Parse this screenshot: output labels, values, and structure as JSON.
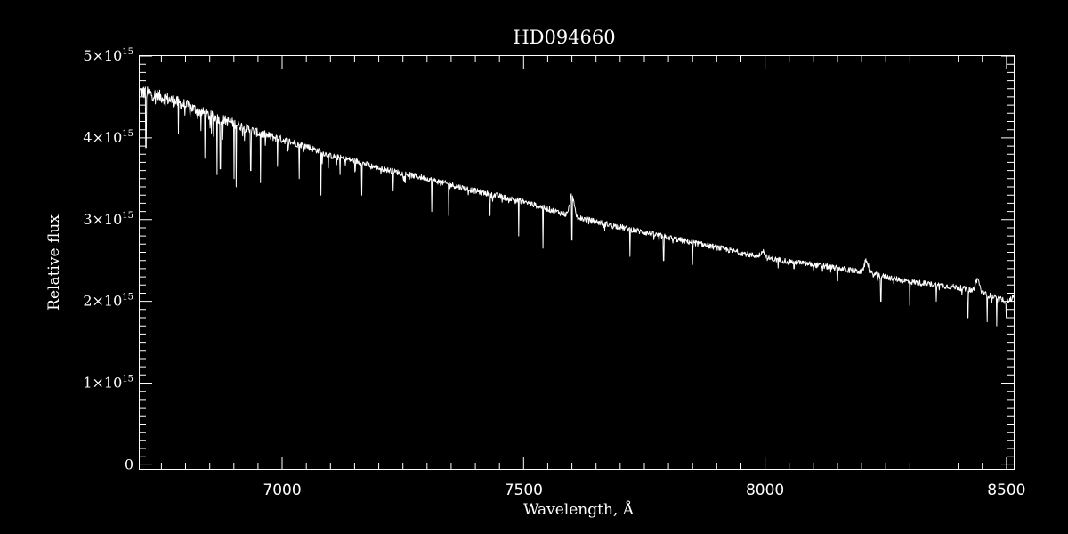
{
  "chart_data": {
    "type": "line",
    "title": "HD094660",
    "xlabel": "Wavelength, Å",
    "ylabel": "Relative flux",
    "xlim": [
      6705,
      8515
    ],
    "ylim": [
      -0.05,
      5.0
    ],
    "y_scale_factor": 1000000000000000.0,
    "grid": false,
    "x_ticks": [
      7000,
      7500,
      8000,
      8500
    ],
    "x_tick_labels": [
      "7000",
      "7500",
      "8000",
      "8500"
    ],
    "y_ticks": [
      0,
      1,
      2,
      3,
      4,
      5
    ],
    "y_tick_labels": [
      {
        "mantissa": "0",
        "exponent": ""
      },
      {
        "mantissa": "1×10",
        "exponent": "15"
      },
      {
        "mantissa": "2×10",
        "exponent": "15"
      },
      {
        "mantissa": "3×10",
        "exponent": "15"
      },
      {
        "mantissa": "4×10",
        "exponent": "15"
      },
      {
        "mantissa": "5×10",
        "exponent": "15"
      }
    ],
    "series": [
      {
        "color": "#ffffff",
        "continuum": {
          "x": [
            6705,
            6750,
            6800,
            6850,
            6900,
            6950,
            7000,
            7050,
            7100,
            7150,
            7200,
            7300,
            7400,
            7500,
            7600,
            7700,
            7800,
            7900,
            8000,
            8100,
            8200,
            8300,
            8400,
            8450,
            8500,
            8515
          ],
          "y": [
            4.57,
            4.5,
            4.4,
            4.27,
            4.18,
            4.06,
            3.98,
            3.9,
            3.78,
            3.72,
            3.63,
            3.5,
            3.35,
            3.22,
            3.04,
            2.91,
            2.78,
            2.66,
            2.53,
            2.45,
            2.36,
            2.24,
            2.17,
            2.1,
            2.0,
            2.05
          ]
        },
        "emission_features": [
          {
            "x": 7600,
            "peak": 3.3
          },
          {
            "x": 7995,
            "peak": 2.62
          },
          {
            "x": 8210,
            "peak": 2.5
          },
          {
            "x": 8440,
            "peak": 2.27
          }
        ],
        "absorption_features": [
          {
            "x": 6718,
            "depth": 3.88
          },
          {
            "x": 6785,
            "depth": 4.05
          },
          {
            "x": 6840,
            "depth": 3.75
          },
          {
            "x": 6865,
            "depth": 3.55
          },
          {
            "x": 6872,
            "depth": 3.62
          },
          {
            "x": 6900,
            "depth": 3.5
          },
          {
            "x": 6905,
            "depth": 3.4
          },
          {
            "x": 6935,
            "depth": 3.6
          },
          {
            "x": 6955,
            "depth": 3.45
          },
          {
            "x": 6990,
            "depth": 3.65
          },
          {
            "x": 7035,
            "depth": 3.5
          },
          {
            "x": 7080,
            "depth": 3.3
          },
          {
            "x": 7120,
            "depth": 3.55
          },
          {
            "x": 7165,
            "depth": 3.3
          },
          {
            "x": 7230,
            "depth": 3.35
          },
          {
            "x": 7310,
            "depth": 3.1
          },
          {
            "x": 7345,
            "depth": 3.05
          },
          {
            "x": 7430,
            "depth": 3.05
          },
          {
            "x": 7490,
            "depth": 2.8
          },
          {
            "x": 7540,
            "depth": 2.65
          },
          {
            "x": 7600,
            "depth": 2.75
          },
          {
            "x": 7720,
            "depth": 2.55
          },
          {
            "x": 7790,
            "depth": 2.5
          },
          {
            "x": 7850,
            "depth": 2.45
          },
          {
            "x": 8060,
            "depth": 2.4
          },
          {
            "x": 8150,
            "depth": 2.25
          },
          {
            "x": 8240,
            "depth": 2.0
          },
          {
            "x": 8300,
            "depth": 1.95
          },
          {
            "x": 8355,
            "depth": 2.0
          },
          {
            "x": 8420,
            "depth": 1.8
          },
          {
            "x": 8460,
            "depth": 1.75
          },
          {
            "x": 8480,
            "depth": 1.7
          },
          {
            "x": 8500,
            "depth": 1.8
          }
        ]
      }
    ]
  }
}
